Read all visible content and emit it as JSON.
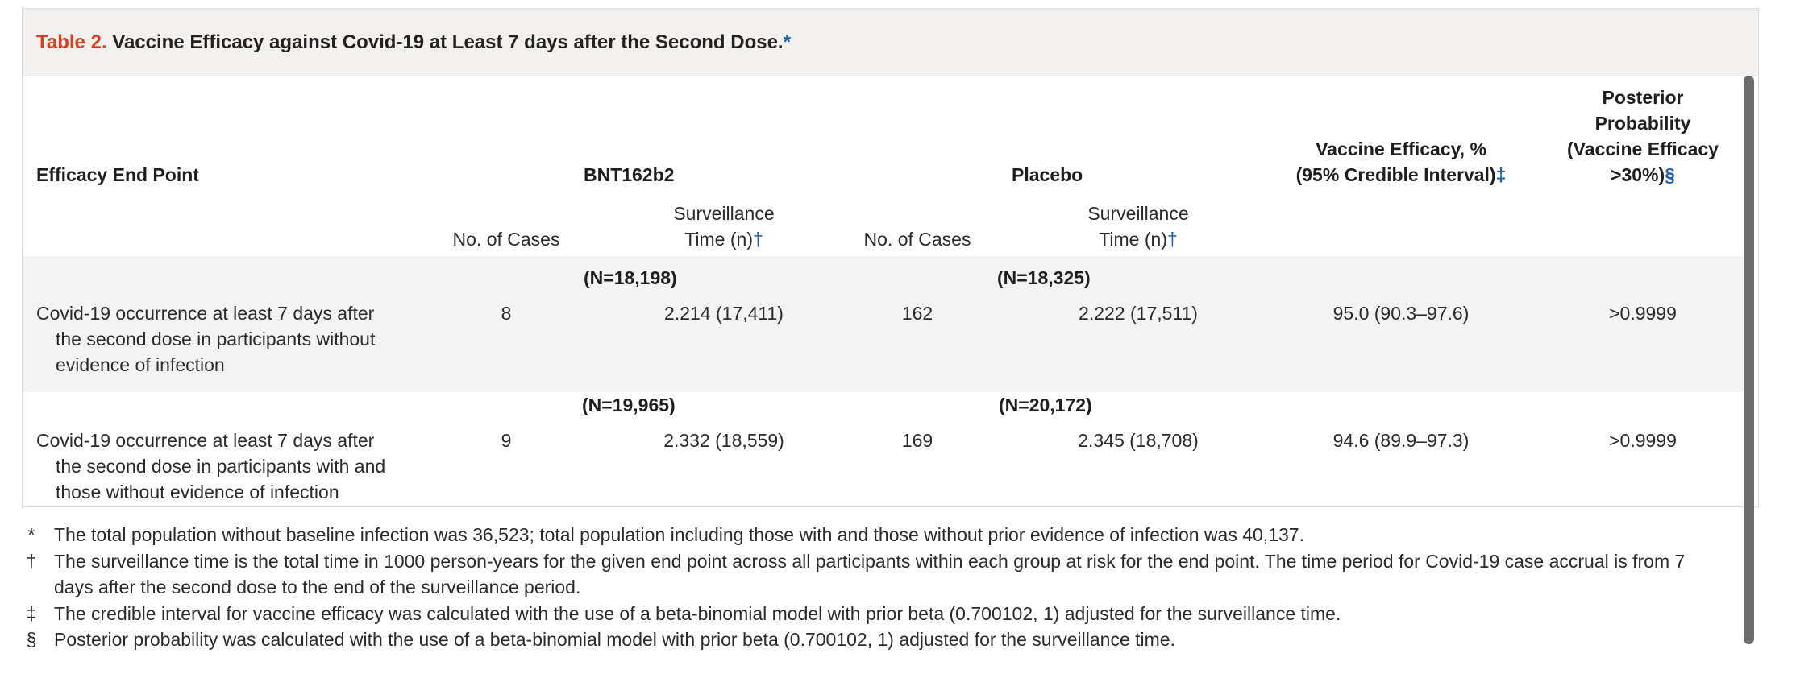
{
  "title": {
    "label": "Table 2.",
    "text": "Vaccine Efficacy against Covid-19 at Least 7 days after the Second Dose.",
    "marker": "*"
  },
  "header": {
    "end_point": "Efficacy End Point",
    "group1": "BNT162b2",
    "group2": "Placebo",
    "efficacy_line1": "Vaccine Efficacy, %",
    "efficacy_line2": "(95% Credible Interval)",
    "efficacy_marker": "‡",
    "posterior_line1": "Posterior",
    "posterior_line2": "Probability",
    "posterior_line3": "(Vaccine Efficacy",
    "posterior_line4": ">30%)",
    "posterior_marker": "§",
    "cases": "No. of Cases",
    "surveillance_line1": "Surveillance",
    "surveillance_line2": "Time (n)",
    "surveillance_marker": "†"
  },
  "rows": [
    {
      "n_group1": "(N=18,198)",
      "n_group2": "(N=18,325)",
      "end_point_lines": [
        "Covid-19 occurrence at least 7 days after",
        "the second dose in participants without",
        "evidence of infection"
      ],
      "cases_group1": "8",
      "surv_group1": "2.214 (17,411)",
      "cases_group2": "162",
      "surv_group2": "2.222 (17,511)",
      "efficacy": "95.0 (90.3–97.6)",
      "posterior": ">0.9999"
    },
    {
      "n_group1": "(N=19,965)",
      "n_group2": "(N=20,172)",
      "end_point_lines": [
        "Covid-19 occurrence at least 7 days after",
        "the second dose in participants with and",
        "those without evidence of infection"
      ],
      "cases_group1": "9",
      "surv_group1": "2.332 (18,559)",
      "cases_group2": "169",
      "surv_group2": "2.345 (18,708)",
      "efficacy": "94.6 (89.9–97.3)",
      "posterior": ">0.9999"
    }
  ],
  "footnotes": [
    {
      "symbol": "*",
      "text": "The total population without baseline infection was 36,523; total population including those with and those without prior evidence of infection was 40,137."
    },
    {
      "symbol": "†",
      "text": "The surveillance time is the total time in 1000 person-years for the given end point across all participants within each group at risk for the end point. The time period for Covid-19 case accrual is from 7 days after the second dose to the end of the surveillance period."
    },
    {
      "symbol": "‡",
      "text": "The credible interval for vaccine efficacy was calculated with the use of a beta-binomial model with prior beta (0.700102, 1) adjusted for the surveillance time."
    },
    {
      "symbol": "§",
      "text": "Posterior probability was calculated with the use of a beta-binomial model with prior beta (0.700102, 1) adjusted for the surveillance time."
    }
  ]
}
